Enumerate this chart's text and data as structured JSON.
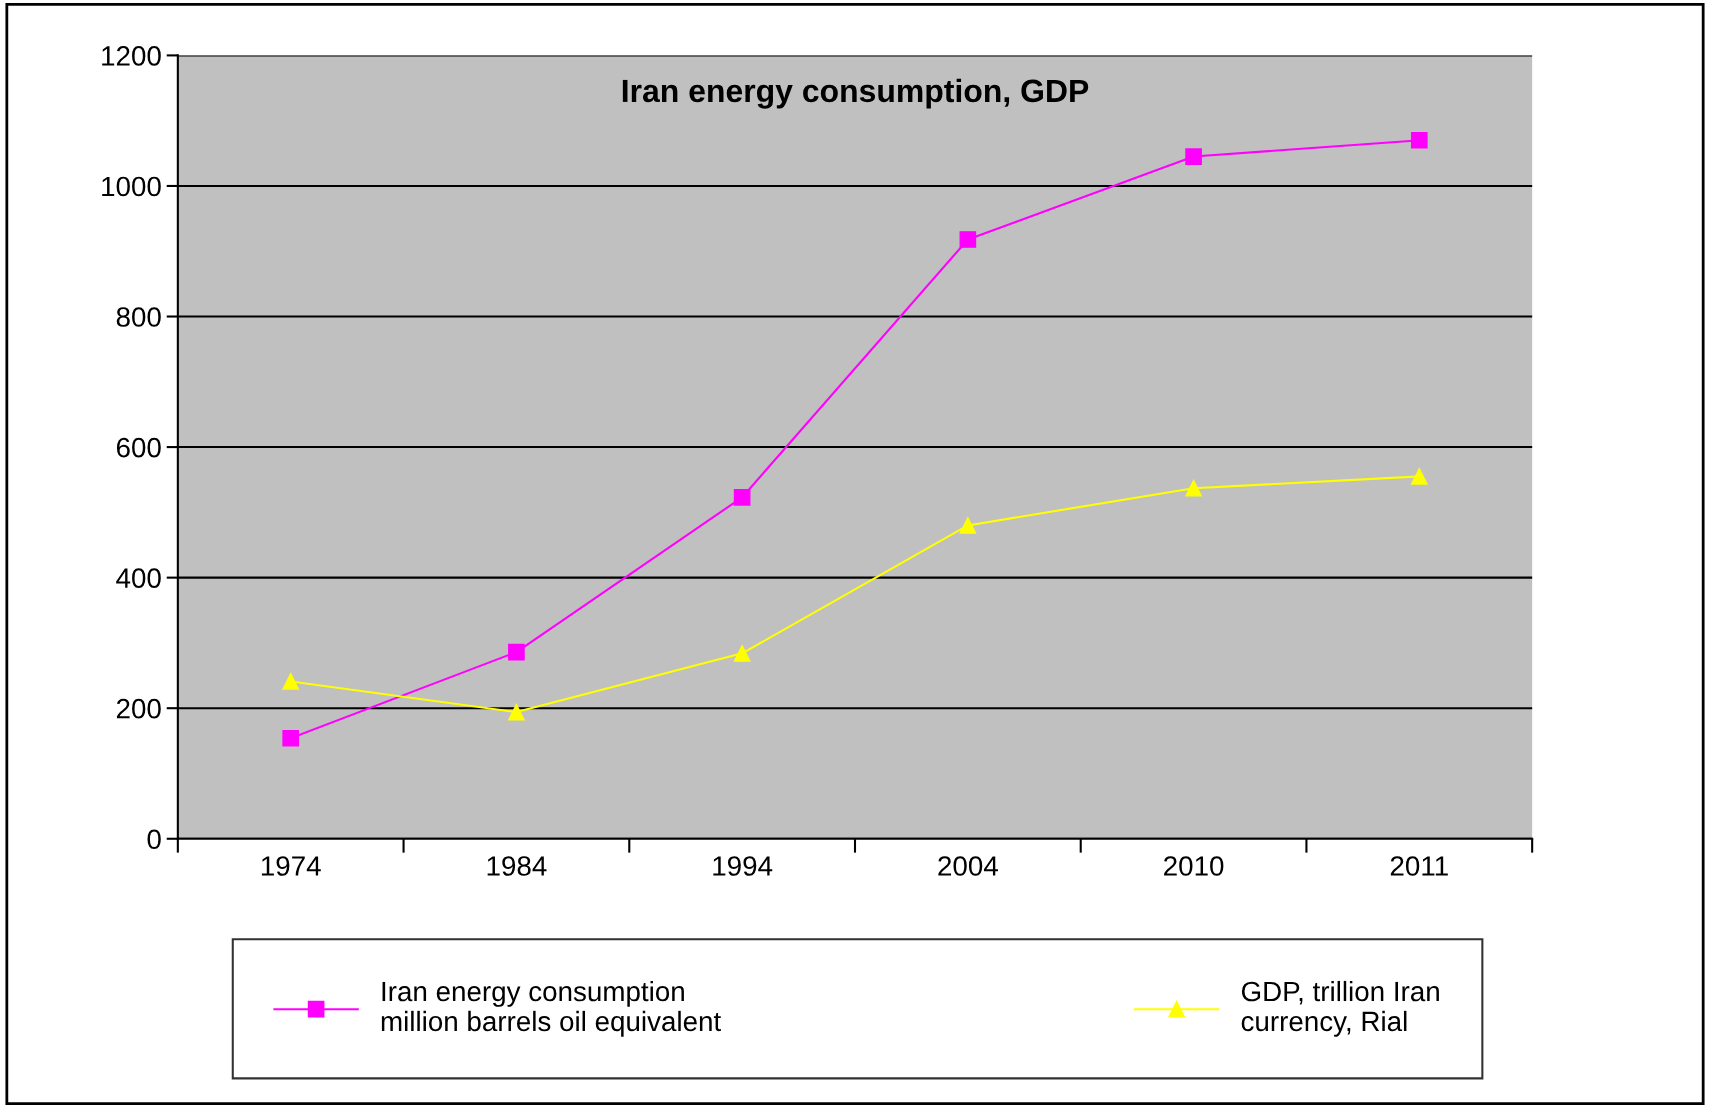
{
  "chart_data": {
    "type": "line",
    "title": "Iran energy consumption, GDP",
    "categories": [
      "1974",
      "1984",
      "1994",
      "2004",
      "2010",
      "2011"
    ],
    "series": [
      {
        "name": "Iran energy consumption\nmillion barrels oil equivalent",
        "color": "#ff00ff",
        "marker": "square",
        "values": [
          154,
          286,
          523,
          918,
          1045,
          1070
        ]
      },
      {
        "name": "GDP, trillion Iran\ncurrency, Rial",
        "color": "#ffff00",
        "marker": "triangle",
        "values": [
          241,
          194,
          284,
          480,
          537,
          555
        ]
      }
    ],
    "ylim": [
      0,
      1200
    ],
    "yticks": [
      0,
      200,
      400,
      600,
      800,
      1000,
      1200
    ],
    "grid": "y",
    "legend": "bottom",
    "line_style": "solid"
  }
}
